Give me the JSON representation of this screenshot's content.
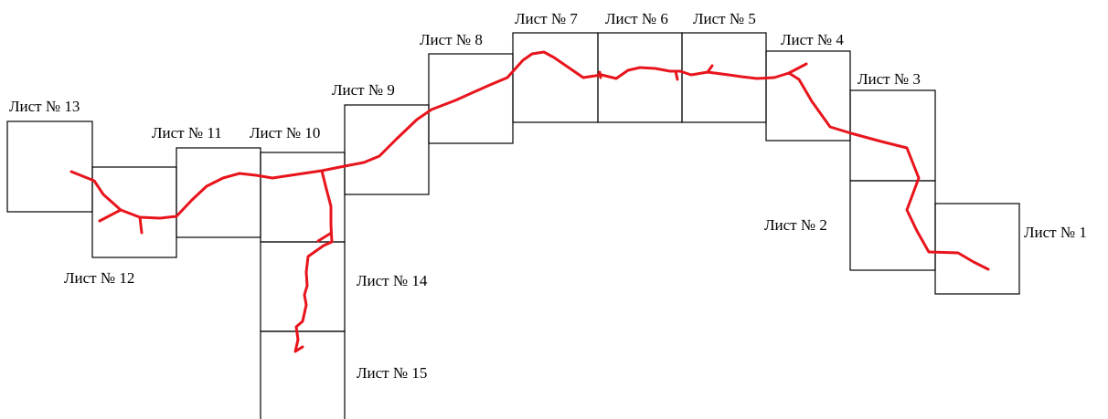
{
  "sheets": [
    {
      "id": 1,
      "label": "Лист № 1"
    },
    {
      "id": 2,
      "label": "Лист № 2"
    },
    {
      "id": 3,
      "label": "Лист № 3"
    },
    {
      "id": 4,
      "label": "Лист № 4"
    },
    {
      "id": 5,
      "label": "Лист № 5"
    },
    {
      "id": 6,
      "label": "Лист № 6"
    },
    {
      "id": 7,
      "label": "Лист № 7"
    },
    {
      "id": 8,
      "label": "Лист № 8"
    },
    {
      "id": 9,
      "label": "Лист № 9"
    },
    {
      "id": 10,
      "label": "Лист № 10"
    },
    {
      "id": 11,
      "label": "Лист № 11"
    },
    {
      "id": 12,
      "label": "Лист № 12"
    },
    {
      "id": 13,
      "label": "Лист № 13"
    },
    {
      "id": 14,
      "label": "Лист № 14"
    },
    {
      "id": 15,
      "label": "Лист № 15"
    }
  ],
  "route_color": "#e8141c"
}
